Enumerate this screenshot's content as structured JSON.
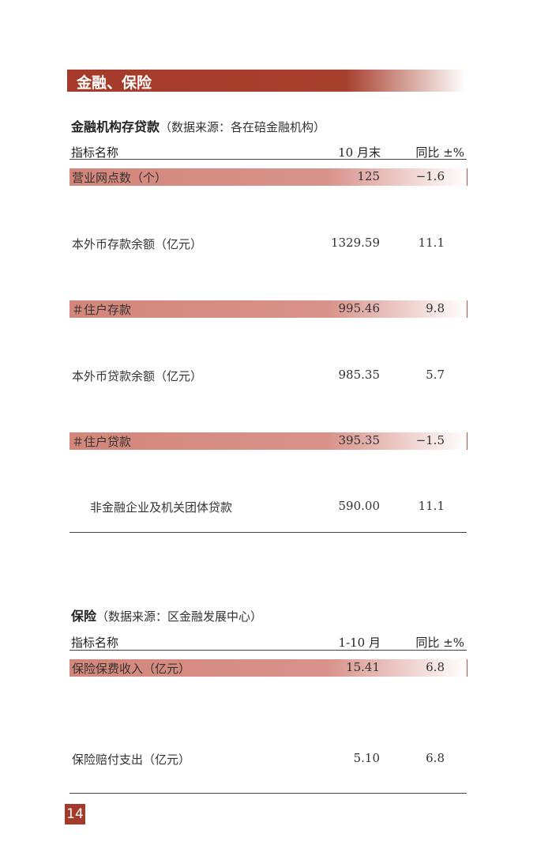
{
  "banner": {
    "title": "金融、保险"
  },
  "finance": {
    "title": "金融机构存贷款",
    "source": "（数据来源：各在碚金融机构）",
    "headers": [
      "指标名称",
      "10 月末",
      "同比 ±%"
    ],
    "rows": [
      {
        "name": "营业网点数（个）",
        "value": "125",
        "yoy": "−1.6"
      },
      {
        "name": "本外币存款余额（亿元）",
        "value": "1329.59",
        "yoy": "11.1"
      },
      {
        "name": "＃住户存款",
        "value": "995.46",
        "yoy": "9.8"
      },
      {
        "name": "本外币贷款余额（亿元）",
        "value": "985.35",
        "yoy": "5.7"
      },
      {
        "name": "＃住户贷款",
        "value": "395.35",
        "yoy": "−1.5"
      },
      {
        "name": "非金融企业及机关团体贷款",
        "value": "590.00",
        "yoy": "11.1"
      }
    ]
  },
  "insurance": {
    "title": "保险",
    "source": "（数据来源：区金融发展中心）",
    "headers": [
      "指标名称",
      "1-10 月",
      "同比 ±%"
    ],
    "rows": [
      {
        "name": "保险保费收入（亿元）",
        "value": "15.41",
        "yoy": "6.8"
      },
      {
        "name": "保险赔付支出（亿元）",
        "value": "5.10",
        "yoy": "6.8"
      }
    ]
  },
  "page_number": "14",
  "colors": {
    "accent": "#a63a2a",
    "band": "#d4867a"
  }
}
